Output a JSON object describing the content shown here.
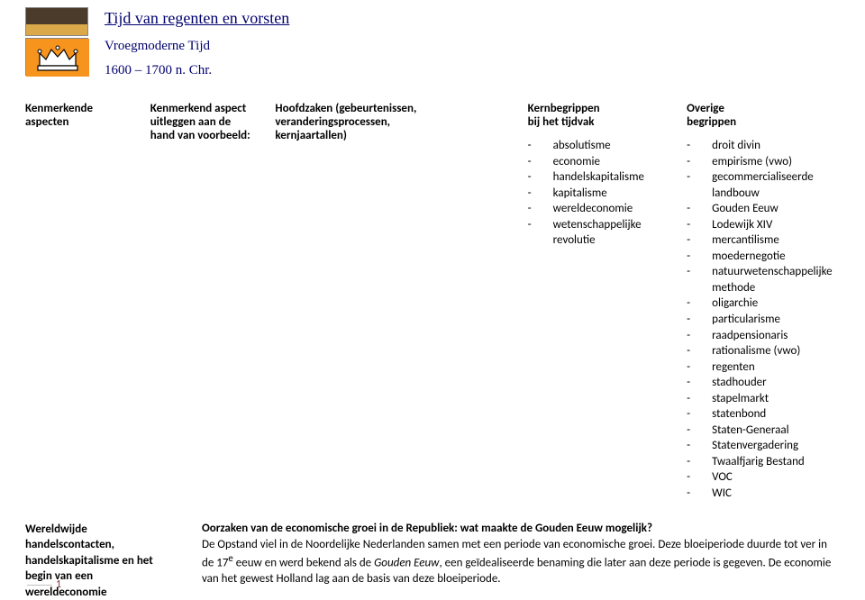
{
  "header": {
    "title": "Tijd van regenten en vorsten",
    "subtitle": "Vroegmoderne Tijd",
    "dates": "1600 – 1700 n. Chr."
  },
  "columns": {
    "c1": "Kenmerkende aspecten",
    "c2_line1": "Kenmerkend aspect",
    "c2_line2": "uitleggen aan de",
    "c2_line3": "hand van voorbeeld:",
    "c3_line1": "Hoofdzaken (gebeurtenissen, veranderingsprocessen,",
    "c3_line2": "kernjaartallen)",
    "c4_head_line1": "Kernbegrippen",
    "c4_head_line2": "bij het tijdvak",
    "c5_head_line1": "Overige",
    "c5_head_line2": "begrippen"
  },
  "kernbegrippen": [
    "absolutisme",
    "economie",
    "handelskapitalisme",
    "kapitalisme",
    "wereldeconomie",
    "wetenschappelijke revolutie"
  ],
  "overige": [
    "droit divin",
    "empirisme (vwo)",
    "gecommercialiseerde landbouw",
    "Gouden Eeuw",
    "Lodewijk XIV",
    "mercantilisme",
    "moedernegotie",
    "natuurwetenschappelijke methode",
    "oligarchie",
    "particularisme",
    "raadpensionaris",
    "rationalisme (vwo)",
    "regenten",
    "stadhouder",
    "stapelmarkt",
    "statenbond",
    "Staten-Generaal",
    "Statenvergadering",
    "Twaalfjarig Bestand",
    "VOC",
    "WIC"
  ],
  "section2": {
    "left": "Wereldwijde handelscontacten, handelskapitalisme en het begin van een wereldeconomie",
    "question": "Oorzaken van de economische groei in de Republiek: wat maakte de Gouden Eeuw mogelijk?",
    "p_pre": "De Opstand viel in de Noordelijke Nederlanden samen met een periode van economische groei. Deze bloeiperiode duurde tot ver in de 17",
    "p_sup": "e",
    "p_mid": " eeuw en werd bekend als de ",
    "p_italic": "Gouden Eeuw",
    "p_post": ", een geïdealiseerde benaming die later aan deze periode is gegeven. De economie van het gewest Holland lag aan de basis van deze bloeiperiode."
  },
  "page_number": "1",
  "colors": {
    "title_color": "#00006e",
    "accent_orange": "#f7941e",
    "pagenum_color": "#7d3a3a"
  }
}
